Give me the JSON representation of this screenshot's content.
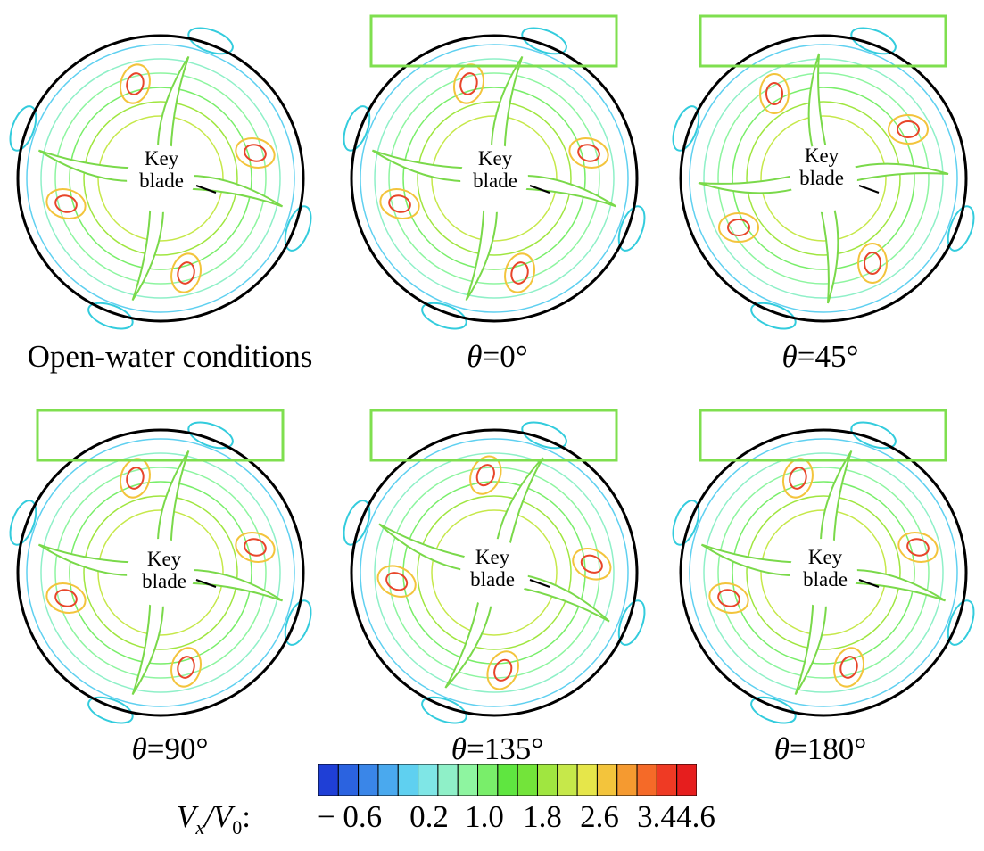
{
  "panels": [
    {
      "caption_prefix": "",
      "caption_value": "Open-water conditions",
      "key_line_1": "Key",
      "key_line_2": "blade",
      "key_rotation": 0,
      "wake_box": false
    },
    {
      "caption_prefix": "θ",
      "caption_value": "=0°",
      "key_line_1": "Key",
      "key_line_2": "blade",
      "key_rotation": 0,
      "wake_box": true
    },
    {
      "caption_prefix": "θ",
      "caption_value": "=45°",
      "key_line_1": "Key",
      "key_line_2": "blade",
      "key_rotation": -45,
      "wake_box": true
    },
    {
      "caption_prefix": "θ",
      "caption_value": "=90°",
      "key_line_1": "Key",
      "key_line_2": "blade",
      "key_rotation": -90,
      "wake_box": true
    },
    {
      "caption_prefix": "θ",
      "caption_value": "=135°",
      "key_line_1": "Key",
      "key_line_2": "blade",
      "key_rotation": -135,
      "wake_box": true
    },
    {
      "caption_prefix": "θ",
      "caption_value": "=180°",
      "key_line_1": "Key",
      "key_line_2": "blade",
      "key_rotation": 0,
      "wake_box": true
    }
  ],
  "colorbar": {
    "label_main": "V",
    "label_sub": "x",
    "label_div": "/V",
    "label_sub0": "0",
    "label_colon": ":",
    "ticks": [
      "− 0.6",
      "0.2",
      "1.0",
      "1.8",
      "2.6",
      "3.4",
      "4.6"
    ],
    "colors": [
      "#1f3fd6",
      "#2b63e0",
      "#3a86e8",
      "#4aa9ee",
      "#5fd0f0",
      "#7fe6e6",
      "#8ff0c8",
      "#8ef5a0",
      "#79ee6a",
      "#5fe640",
      "#73e43a",
      "#a0e640",
      "#c6e84a",
      "#e6e64a",
      "#f3c43c",
      "#f59a30",
      "#f56a28",
      "#ef3a24",
      "#e61e1e"
    ]
  },
  "colors": {
    "outline": "#000000",
    "wake_box": "#7fdf4f",
    "contour_low": "#33ccdd",
    "contour_mid": "#7ad94a",
    "contour_high": "#e8452a"
  }
}
